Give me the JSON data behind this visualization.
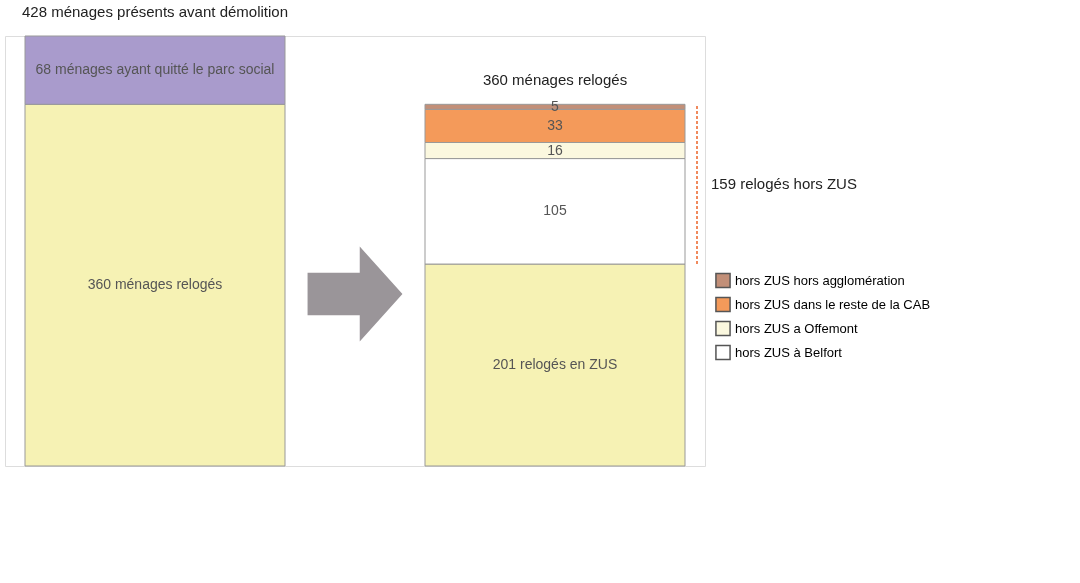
{
  "chart_data": {
    "type": "bar",
    "stacked": true,
    "categories": [
      null,
      null
    ],
    "series": [
      {
        "color": "#f6f2b4",
        "values": [
          360,
          201
        ],
        "value_labels": [
          "360 ménages relogés",
          "201 relogés en ZUS"
        ]
      },
      {
        "color": "#a99bcc",
        "values": [
          68,
          null
        ],
        "value_labels": [
          "68 ménages ayant quitté le parc social",
          null
        ]
      },
      {
        "name": "hors ZUS à Belfort",
        "color": "#ffffff",
        "values": [
          null,
          105
        ],
        "value_labels": [
          null,
          "105"
        ]
      },
      {
        "name": "hors ZUS a Offemont",
        "color": "#fbf8df",
        "values": [
          null,
          16
        ],
        "value_labels": [
          null,
          "16"
        ]
      },
      {
        "name": "hors ZUS dans le reste de la CAB",
        "color": "#f49a5a",
        "values": [
          null,
          33
        ],
        "value_labels": [
          null,
          "33"
        ]
      },
      {
        "name": "hors ZUS hors agglomération",
        "color": "#c28f78",
        "values": [
          null,
          5
        ],
        "value_labels": [
          null,
          "5"
        ]
      }
    ],
    "totals": [
      "428 ménages présents avant démolition",
      "360 ménages relogés"
    ],
    "annotations": [
      "159 relogés hors ZUS"
    ],
    "legend": "right"
  }
}
